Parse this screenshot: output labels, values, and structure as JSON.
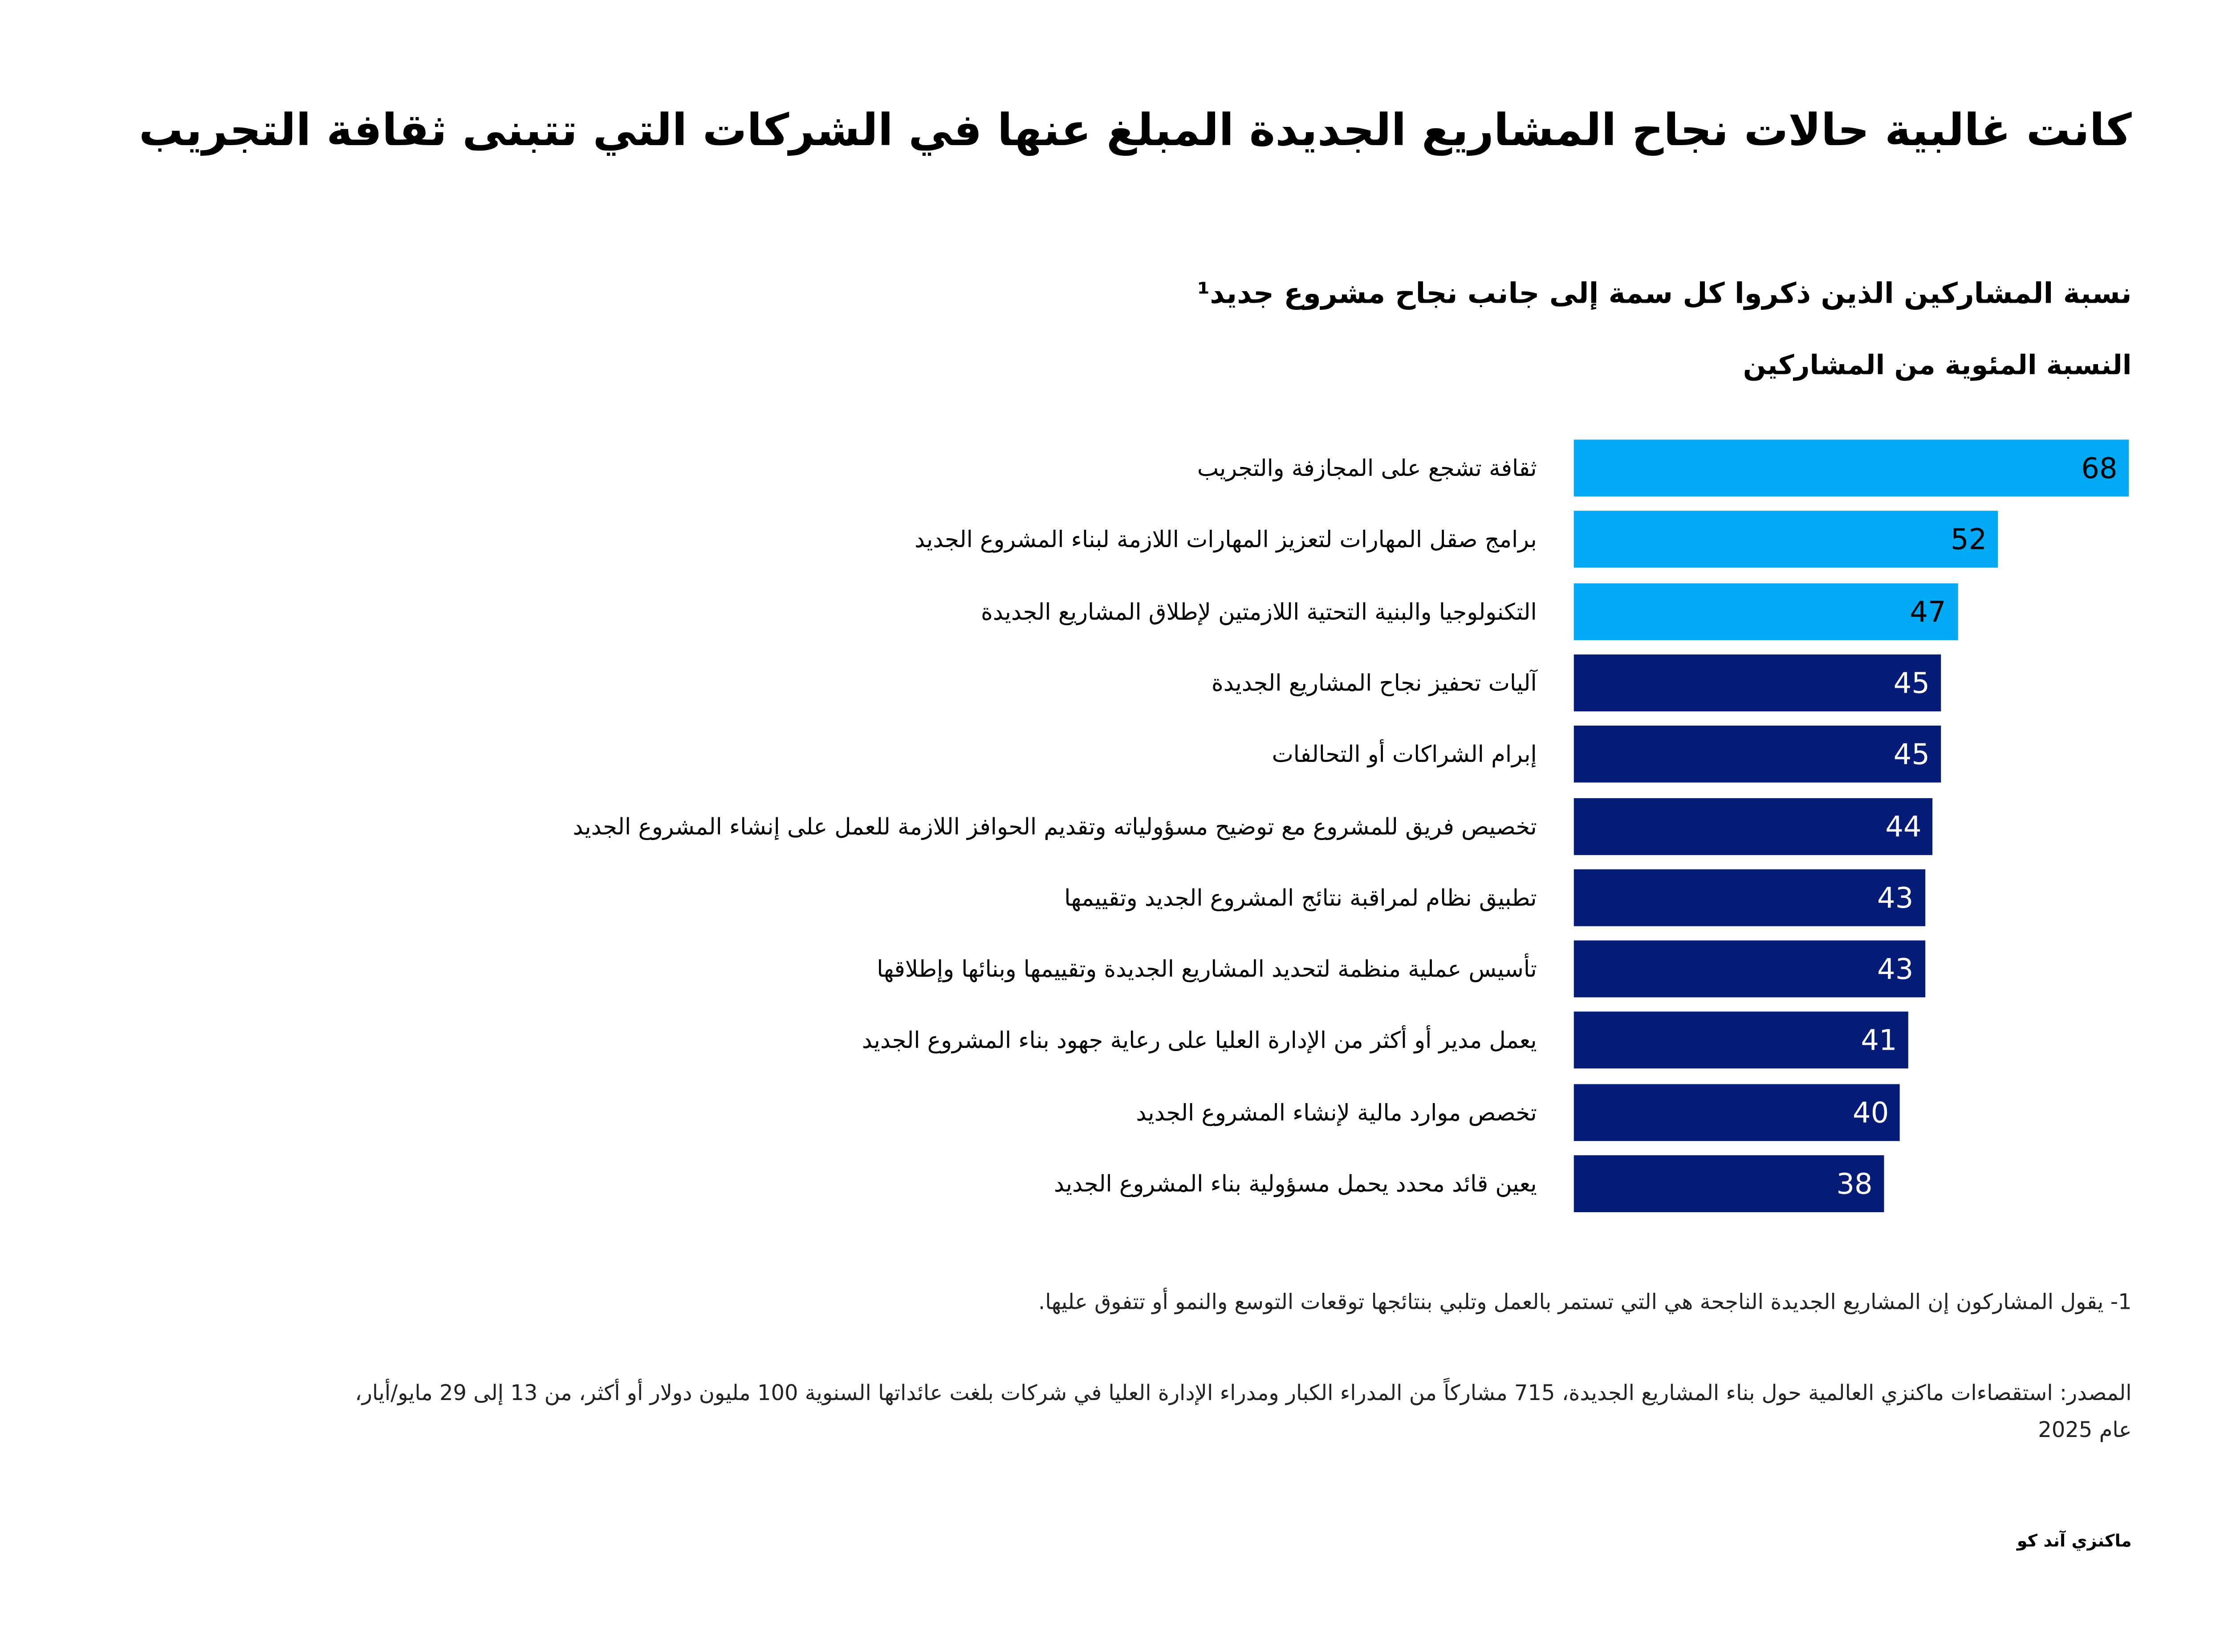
{
  "title": "كانت غالبية حالات نجاح المشاريع الجديدة المبلغ عنها في الشركات التي تتبنى ثقافة التجريب",
  "subtitle": "نسبة المشاركين الذين ذكروا كل سمة إلى جانب نجاح مشروع جديد¹",
  "colors": {
    "highlight": "#00A9F4",
    "base": "#051C76"
  },
  "chart_data": {
    "type": "bar",
    "orientation": "horizontal",
    "title": "نسبة المشاركين الذين ذكروا كل سمة إلى جانب نجاح مشروع جديد¹",
    "xlabel": "النسبة المئوية من المشاركين",
    "ylabel": "",
    "xlim": [
      0,
      68
    ],
    "grid": false,
    "categories": [
      "ثقافة تشجع على المجازفة والتجريب",
      "برامج صقل المهارات لتعزيز المهارات اللازمة لبناء المشروع الجديد",
      "التكنولوجيا والبنية التحتية اللازمتين لإطلاق المشاريع الجديدة",
      "آليات تحفيز نجاح المشاريع الجديدة",
      "إبرام الشراكات أو التحالفات",
      "تخصيص فريق للمشروع مع توضيح مسؤولياته وتقديم الحوافز اللازمة للعمل على إنشاء المشروع الجديد",
      "تطبيق نظام لمراقبة نتائج المشروع الجديد وتقييمها",
      "تأسيس عملية منظمة لتحديد المشاريع الجديدة وتقييمها وبنائها وإطلاقها",
      "يعمل مدير أو أكثر من الإدارة العليا على رعاية جهود بناء المشروع الجديد",
      "تخصص موارد مالية لإنشاء المشروع الجديد",
      "يعين قائد محدد يحمل مسؤولية بناء المشروع الجديد"
    ],
    "values": [
      68,
      52,
      47,
      45,
      45,
      44,
      43,
      43,
      41,
      40,
      38
    ],
    "highlighted": [
      true,
      true,
      true,
      false,
      false,
      false,
      false,
      false,
      false,
      false,
      false
    ]
  },
  "footnote": "1- يقول المشاركون إن المشاريع الجديدة الناجحة هي التي تستمر بالعمل وتلبي بنتائجها توقعات التوسع والنمو أو تتفوق عليها.",
  "source": "المصدر: استقصاءات ماكنزي العالمية حول بناء المشاريع الجديدة، 715 مشاركاً من المدراء الكبار ومدراء الإدارة العليا في شركات بلغت عائداتها السنوية 100 مليون دولار أو أكثر، من 13 إلى 29 مايو/أيار، عام 2025",
  "brand": "ماكنزي آند كو"
}
